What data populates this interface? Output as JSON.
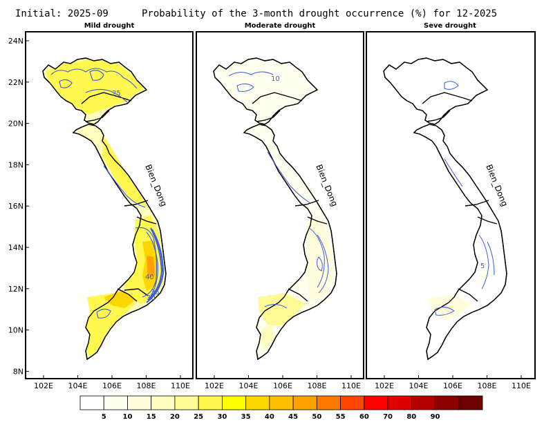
{
  "header": {
    "initial": "Initial: 2025-09",
    "title": "Probability of the 3-month drought occurrence (%) for 12-2025"
  },
  "panels": [
    {
      "title": "Mild drought",
      "sea_label": "Bien_Dong",
      "contour_labels": [
        "25",
        "40",
        "30",
        "35"
      ]
    },
    {
      "title": "Moderate drought",
      "sea_label": "Bien_Dong",
      "contour_labels": [
        "10"
      ]
    },
    {
      "title": "Seve drought",
      "sea_label": "Bien_Dong",
      "contour_labels": [
        "5"
      ]
    }
  ],
  "axes": {
    "y_ticks": [
      "24N",
      "22N",
      "20N",
      "18N",
      "16N",
      "14N",
      "12N",
      "10N",
      "8N"
    ],
    "x_ticks": [
      "102E",
      "104E",
      "106E",
      "108E",
      "110E"
    ]
  },
  "colorbar": {
    "colors": [
      "#ffffff",
      "#fffff0",
      "#fffddc",
      "#fffcbe",
      "#fffa96",
      "#fff850",
      "#ffff00",
      "#ffd700",
      "#ffbe00",
      "#ffa000",
      "#ff7800",
      "#ff4600",
      "#ff0000",
      "#e00000",
      "#b40000",
      "#8c0000",
      "#6e0000"
    ],
    "labels": [
      "5",
      "10",
      "15",
      "20",
      "25",
      "30",
      "35",
      "40",
      "45",
      "50",
      "55",
      "60",
      "70",
      "80",
      "90"
    ]
  },
  "contour_color": "#3a5ae8"
}
